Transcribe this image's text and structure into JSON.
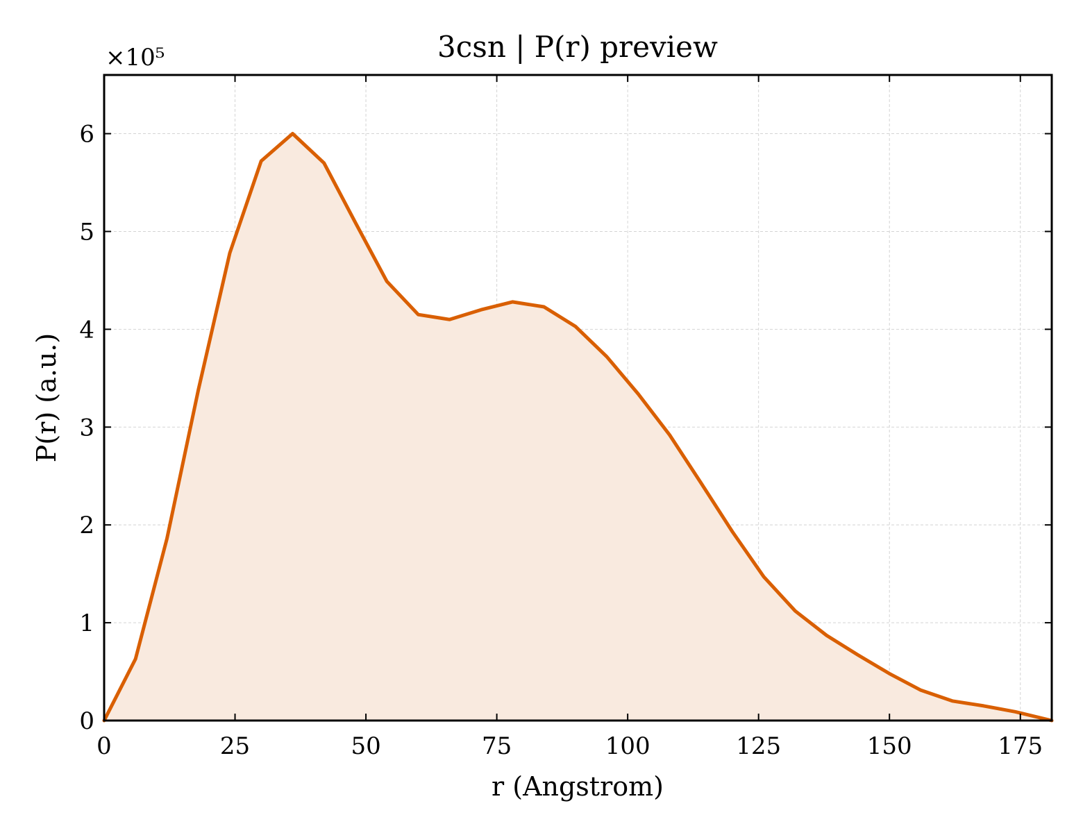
{
  "chart_data": {
    "type": "area",
    "title": "3csn | P(r) preview",
    "xlabel": "r (Angstrom)",
    "ylabel": "P(r) (a.u.)",
    "y_multiplier": "×10⁵",
    "y_scale": 100000,
    "xlim": [
      0,
      181
    ],
    "ylim": [
      0,
      6.6
    ],
    "x_ticks": [
      0,
      25,
      50,
      75,
      100,
      125,
      150,
      175
    ],
    "y_ticks": [
      0,
      1,
      2,
      3,
      4,
      5,
      6
    ],
    "grid": true,
    "legend": "none",
    "line_color": "#d95f02",
    "fill_color": "#f9eadf",
    "series": [
      {
        "x": [
          0,
          6,
          12,
          18,
          24,
          30,
          36,
          42,
          48,
          54,
          60,
          66,
          72,
          78,
          84,
          90,
          96,
          102,
          108,
          114,
          120,
          126,
          132,
          138,
          144,
          150,
          156,
          162,
          168,
          174,
          181
        ],
        "y": [
          0,
          0.63,
          1.86,
          3.38,
          4.78,
          5.72,
          6.0,
          5.7,
          5.09,
          4.49,
          4.15,
          4.1,
          4.2,
          4.28,
          4.23,
          4.03,
          3.72,
          3.34,
          2.92,
          2.43,
          1.93,
          1.47,
          1.12,
          0.87,
          0.67,
          0.48,
          0.31,
          0.2,
          0.15,
          0.09,
          0.0
        ]
      }
    ]
  }
}
